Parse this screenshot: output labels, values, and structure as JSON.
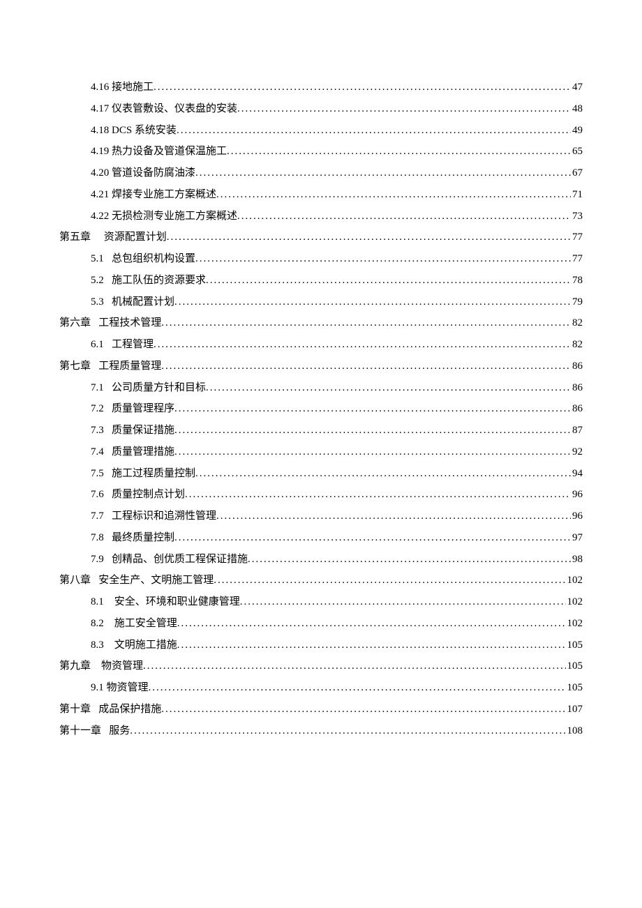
{
  "text_color": "#000000",
  "background_color": "#ffffff",
  "font_size_pt": 11,
  "line_height": 2.05,
  "entries": [
    {
      "indent": 1,
      "num": "4.16",
      "sep_spaces": 1,
      "title": "接地施工",
      "page": "47"
    },
    {
      "indent": 1,
      "num": "4.17",
      "sep_spaces": 1,
      "title": "仪表管敷设、仪表盘的安装",
      "page": "48"
    },
    {
      "indent": 1,
      "num": "4.18",
      "sep_spaces": 1,
      "title": "DCS 系统安装",
      "page": "49"
    },
    {
      "indent": 1,
      "num": "4.19",
      "sep_spaces": 1,
      "title": "热力设备及管道保温施工",
      "page": "65"
    },
    {
      "indent": 1,
      "num": "4.20",
      "sep_spaces": 1,
      "title": "管道设备防腐油漆",
      "page": "67"
    },
    {
      "indent": 1,
      "num": "4.21",
      "sep_spaces": 1,
      "title": "焊接专业施工方案概述",
      "page": "71"
    },
    {
      "indent": 1,
      "num": "4.22",
      "sep_spaces": 1,
      "title": "无损检测专业施工方案概述",
      "page": "73"
    },
    {
      "indent": 0,
      "num": "第五章",
      "sep_spaces": 5,
      "title": "资源配置计划",
      "page": "77"
    },
    {
      "indent": 1,
      "num": "5.1",
      "sep_spaces": 3,
      "title": "总包组织机构设置",
      "page": "77"
    },
    {
      "indent": 1,
      "num": "5.2",
      "sep_spaces": 3,
      "title": "施工队伍的资源要求",
      "page": "78"
    },
    {
      "indent": 1,
      "num": "5.3",
      "sep_spaces": 3,
      "title": "机械配置计划",
      "page": "79"
    },
    {
      "indent": 0,
      "num": "第六章",
      "sep_spaces": 3,
      "title": "工程技术管理",
      "page": "82"
    },
    {
      "indent": 1,
      "num": "6.1",
      "sep_spaces": 3,
      "title": "工程管理",
      "page": "82"
    },
    {
      "indent": 0,
      "num": "第七章",
      "sep_spaces": 3,
      "title": "工程质量管理",
      "page": "86"
    },
    {
      "indent": 1,
      "num": "7.1",
      "sep_spaces": 3,
      "title": "公司质量方针和目标",
      "page": "86"
    },
    {
      "indent": 1,
      "num": "7.2",
      "sep_spaces": 3,
      "title": "质量管理程序",
      "page": "86"
    },
    {
      "indent": 1,
      "num": "7.3",
      "sep_spaces": 3,
      "title": "质量保证措施",
      "page": "87"
    },
    {
      "indent": 1,
      "num": "7.4",
      "sep_spaces": 3,
      "title": "质量管理措施",
      "page": "92"
    },
    {
      "indent": 1,
      "num": "7.5",
      "sep_spaces": 3,
      "title": "施工过程质量控制",
      "page": "94"
    },
    {
      "indent": 1,
      "num": "7.6",
      "sep_spaces": 3,
      "title": "质量控制点计划",
      "page": "96"
    },
    {
      "indent": 1,
      "num": "7.7",
      "sep_spaces": 3,
      "title": "工程标识和追溯性管理",
      "page": "96"
    },
    {
      "indent": 1,
      "num": "7.8",
      "sep_spaces": 3,
      "title": "最终质量控制",
      "page": "97"
    },
    {
      "indent": 1,
      "num": "7.9",
      "sep_spaces": 3,
      "title": "创精品、创优质工程保证措施",
      "page": "98"
    },
    {
      "indent": 0,
      "num": "第八章",
      "sep_spaces": 3,
      "title": "安全生产、文明施工管理",
      "page": "102"
    },
    {
      "indent": 1,
      "num": "8.1",
      "sep_spaces": 4,
      "title": "安全、环境和职业健康管理",
      "page": "102"
    },
    {
      "indent": 1,
      "num": "8.2",
      "sep_spaces": 4,
      "title": "施工安全管理",
      "page": "102"
    },
    {
      "indent": 1,
      "num": "8.3",
      "sep_spaces": 4,
      "title": "文明施工措施",
      "page": "105"
    },
    {
      "indent": 0,
      "num": "第九章",
      "sep_spaces": 4,
      "title": "物资管理",
      "page": "105"
    },
    {
      "indent": 1,
      "num": "9.1",
      "sep_spaces": 1,
      "title": "物资管理",
      "page": "105"
    },
    {
      "indent": 0,
      "num": "第十章",
      "sep_spaces": 3,
      "title": "成品保护措施",
      "page": "107"
    },
    {
      "indent": 0,
      "num": "第十一章",
      "sep_spaces": 3,
      "title": "服务",
      "page": "108"
    }
  ]
}
